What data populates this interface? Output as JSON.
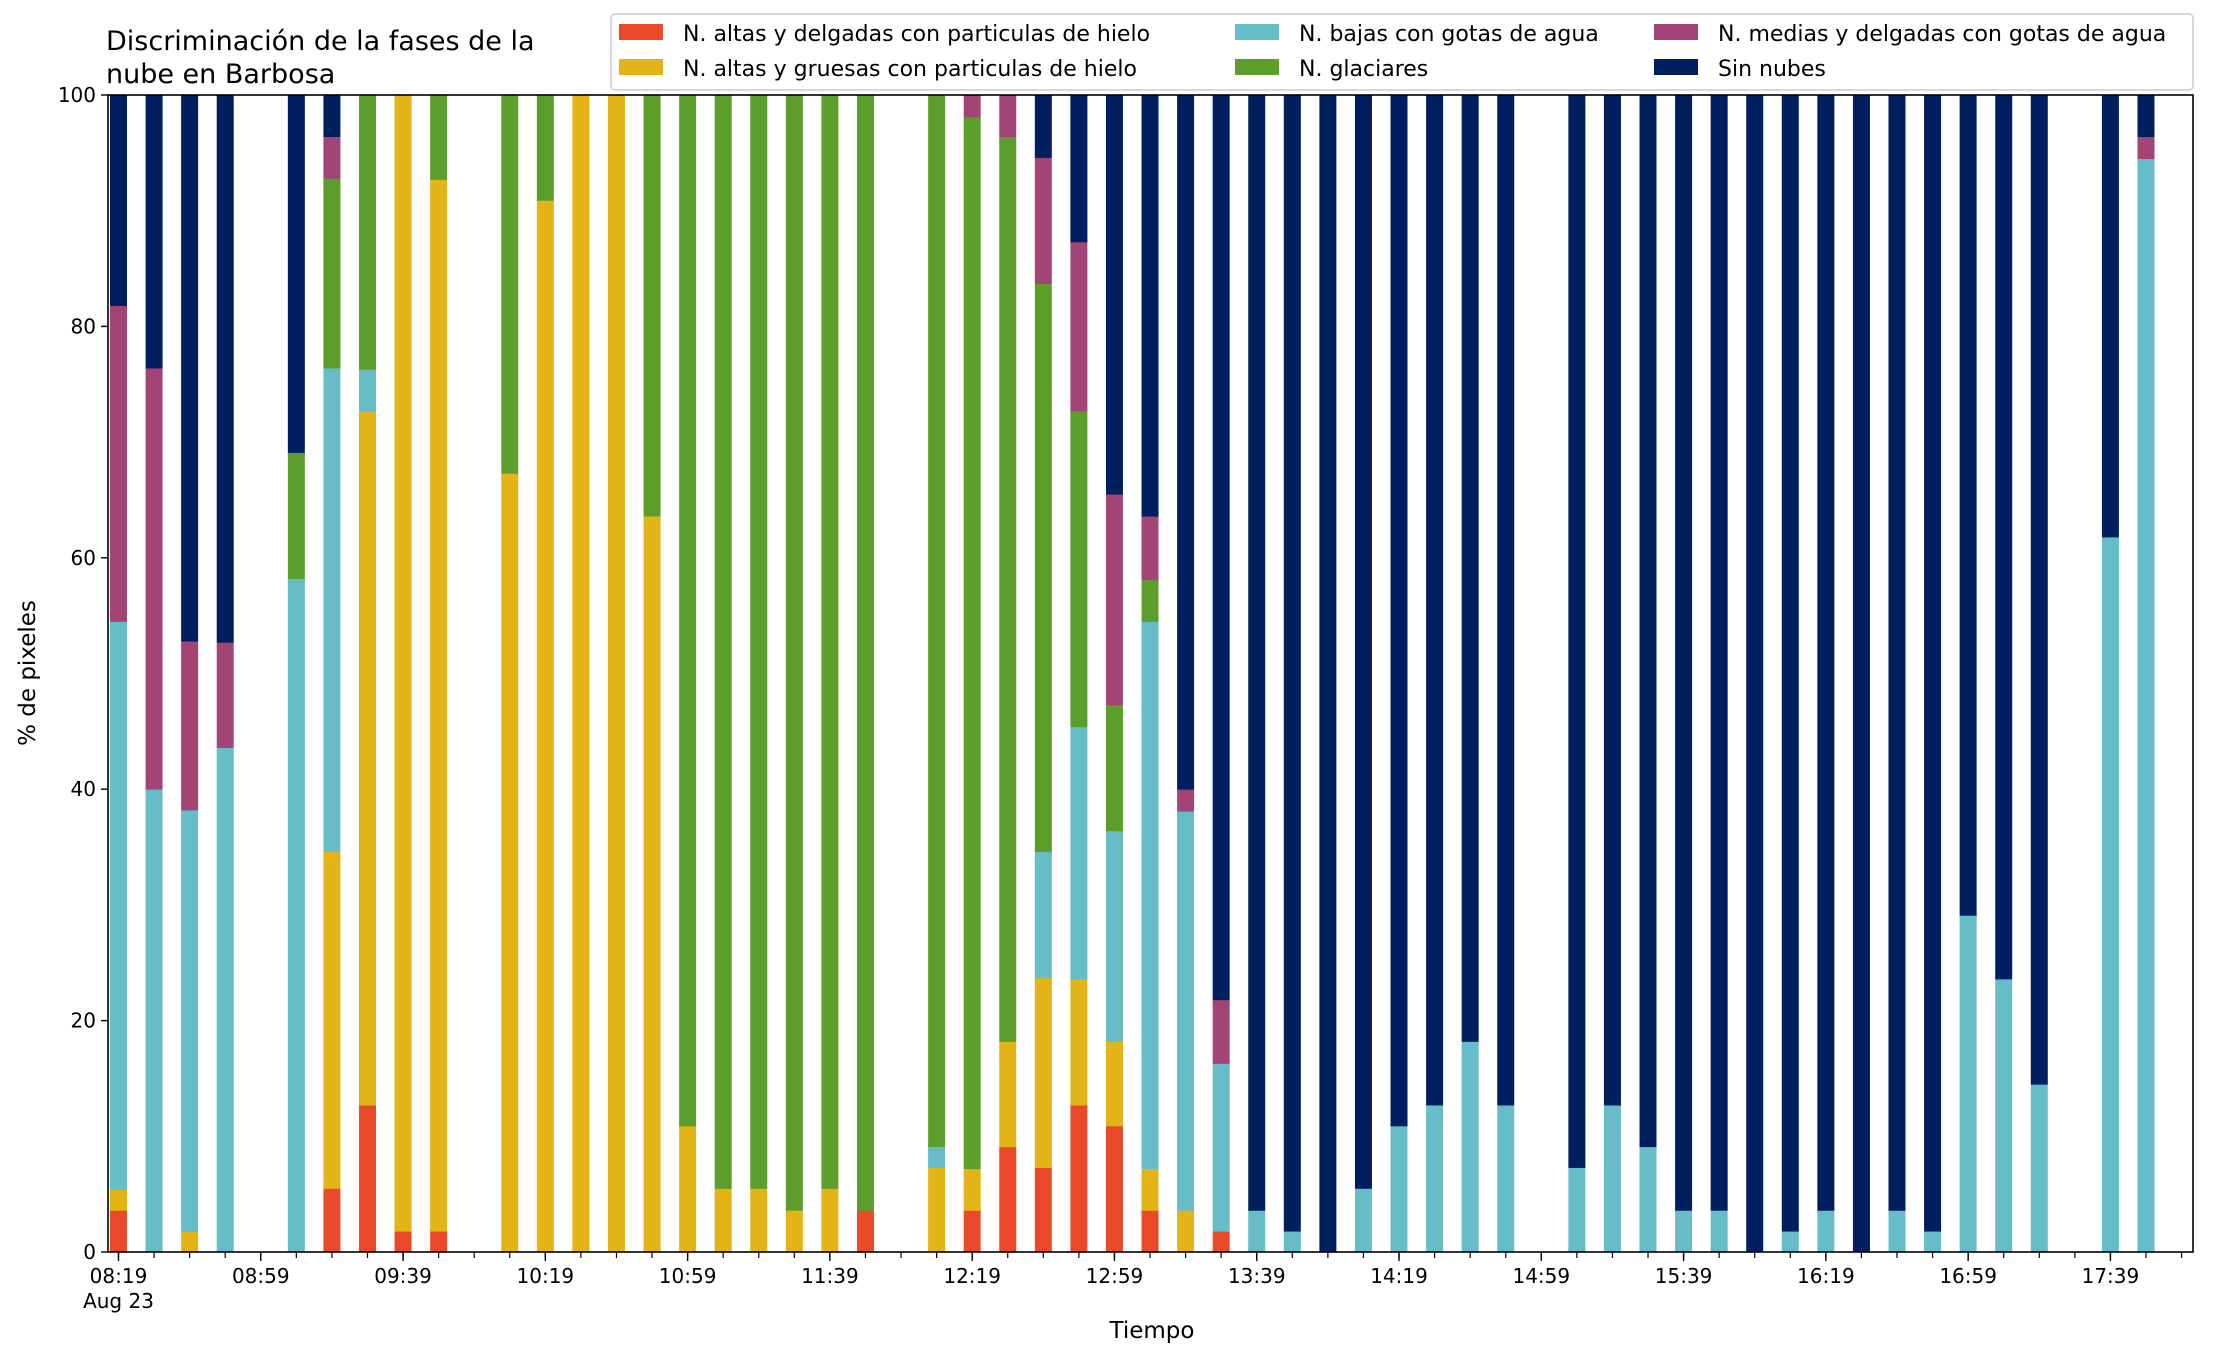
{
  "chart_data": {
    "type": "bar",
    "stacked": true,
    "title_lines": [
      "Discriminación de la fases de la",
      "nube en Barbosa"
    ],
    "xlabel": "Tiempo",
    "ylabel": "% de pixeles",
    "ylim": [
      0,
      100
    ],
    "yticks": [
      0,
      20,
      40,
      60,
      80,
      100
    ],
    "x_start_minutes": 499,
    "slot_minutes": 10,
    "slot_count": 59,
    "xtick_labels": [
      {
        "slot": 0,
        "label": "08:19",
        "sublabel": "Aug 23"
      },
      {
        "slot": 4,
        "label": "08:59"
      },
      {
        "slot": 8,
        "label": "09:39"
      },
      {
        "slot": 12,
        "label": "10:19"
      },
      {
        "slot": 16,
        "label": "10:59"
      },
      {
        "slot": 20,
        "label": "11:39"
      },
      {
        "slot": 24,
        "label": "12:19"
      },
      {
        "slot": 28,
        "label": "12:59"
      },
      {
        "slot": 32,
        "label": "13:39"
      },
      {
        "slot": 36,
        "label": "14:19"
      },
      {
        "slot": 40,
        "label": "14:59"
      },
      {
        "slot": 44,
        "label": "15:39"
      },
      {
        "slot": 48,
        "label": "16:19"
      },
      {
        "slot": 52,
        "label": "16:59"
      },
      {
        "slot": 56,
        "label": "17:39"
      }
    ],
    "legend_position": "top-right",
    "series": [
      {
        "name": "N. altas y delgadas con particulas de hielo",
        "color": "#ea4a2a"
      },
      {
        "name": "N. altas y gruesas con particulas de hielo",
        "color": "#e3b418"
      },
      {
        "name": "N. bajas con gotas de agua",
        "color": "#66bcc7"
      },
      {
        "name": "N. glaciares",
        "color": "#5c9e2c"
      },
      {
        "name": "N. medias y delgadas con gotas de agua",
        "color": "#a34476"
      },
      {
        "name": "Sin nubes",
        "color": "#001f5f"
      }
    ],
    "legend_layout": [
      [
        0,
        2,
        4
      ],
      [
        1,
        3,
        5
      ]
    ],
    "bars": [
      {
        "slot": 0,
        "values": [
          3.6,
          1.8,
          49.1,
          0,
          27.3,
          18.2
        ]
      },
      {
        "slot": 1,
        "values": [
          0,
          0,
          40,
          0,
          36.4,
          23.6
        ]
      },
      {
        "slot": 2,
        "values": [
          0,
          1.8,
          36.4,
          0,
          14.6,
          47.2
        ]
      },
      {
        "slot": 3,
        "values": [
          0,
          0,
          43.6,
          0,
          9.1,
          47.3
        ]
      },
      {
        "slot": 5,
        "values": [
          0,
          0,
          58.2,
          10.9,
          0,
          30.9
        ]
      },
      {
        "slot": 6,
        "values": [
          5.5,
          29.1,
          41.8,
          16.4,
          3.6,
          3.6
        ]
      },
      {
        "slot": 7,
        "values": [
          12.7,
          60,
          3.6,
          23.7,
          0,
          0
        ]
      },
      {
        "slot": 8,
        "values": [
          1.8,
          98.2,
          0,
          0,
          0,
          0
        ]
      },
      {
        "slot": 9,
        "values": [
          1.8,
          90.9,
          0,
          7.3,
          0,
          0
        ]
      },
      {
        "slot": 11,
        "values": [
          0,
          67.3,
          0,
          32.7,
          0,
          0
        ]
      },
      {
        "slot": 12,
        "values": [
          0,
          90.9,
          0,
          9.1,
          0,
          0
        ]
      },
      {
        "slot": 13,
        "values": [
          0,
          100,
          0,
          0,
          0,
          0
        ]
      },
      {
        "slot": 14,
        "values": [
          0,
          100,
          0,
          0,
          0,
          0
        ]
      },
      {
        "slot": 15,
        "values": [
          0,
          63.6,
          0,
          36.4,
          0,
          0
        ]
      },
      {
        "slot": 16,
        "values": [
          0,
          10.9,
          0,
          89.1,
          0,
          0
        ]
      },
      {
        "slot": 17,
        "values": [
          0,
          5.5,
          0,
          94.5,
          0,
          0
        ]
      },
      {
        "slot": 18,
        "values": [
          0,
          5.5,
          0,
          94.5,
          0,
          0
        ]
      },
      {
        "slot": 19,
        "values": [
          0,
          3.6,
          0,
          96.4,
          0,
          0
        ]
      },
      {
        "slot": 20,
        "values": [
          0,
          5.5,
          0,
          94.5,
          0,
          0
        ]
      },
      {
        "slot": 21,
        "values": [
          3.6,
          0,
          0,
          96.4,
          0,
          0
        ]
      },
      {
        "slot": 23,
        "values": [
          0,
          7.3,
          1.8,
          90.9,
          0,
          0
        ]
      },
      {
        "slot": 24,
        "values": [
          3.6,
          3.6,
          0,
          90.9,
          1.9,
          0
        ]
      },
      {
        "slot": 25,
        "values": [
          9.1,
          9.1,
          0,
          78.2,
          3.6,
          0
        ]
      },
      {
        "slot": 26,
        "values": [
          7.3,
          16.4,
          10.9,
          49.1,
          10.9,
          5.4
        ]
      },
      {
        "slot": 27,
        "values": [
          12.7,
          10.9,
          21.8,
          27.3,
          14.6,
          12.7
        ]
      },
      {
        "slot": 28,
        "values": [
          10.9,
          7.3,
          18.2,
          10.9,
          18.2,
          34.5
        ]
      },
      {
        "slot": 29,
        "values": [
          3.6,
          3.6,
          47.3,
          3.6,
          5.5,
          36.4
        ]
      },
      {
        "slot": 30,
        "values": [
          0,
          3.6,
          34.5,
          0,
          1.9,
          60
        ]
      },
      {
        "slot": 31,
        "values": [
          1.8,
          0,
          14.5,
          0,
          5.5,
          78.2
        ]
      },
      {
        "slot": 32,
        "values": [
          0,
          0,
          3.6,
          0,
          0,
          96.4
        ]
      },
      {
        "slot": 33,
        "values": [
          0,
          0,
          1.8,
          0,
          0,
          98.2
        ]
      },
      {
        "slot": 34,
        "values": [
          0,
          0,
          0,
          0,
          0,
          100
        ]
      },
      {
        "slot": 35,
        "values": [
          0,
          0,
          5.5,
          0,
          0,
          94.5
        ]
      },
      {
        "slot": 36,
        "values": [
          0,
          0,
          10.9,
          0,
          0,
          89.1
        ]
      },
      {
        "slot": 37,
        "values": [
          0,
          0,
          12.7,
          0,
          0,
          87.3
        ]
      },
      {
        "slot": 38,
        "values": [
          0,
          0,
          18.2,
          0,
          0,
          81.8
        ]
      },
      {
        "slot": 39,
        "values": [
          0,
          0,
          12.7,
          0,
          0,
          87.3
        ]
      },
      {
        "slot": 41,
        "values": [
          0,
          0,
          7.3,
          0,
          0,
          92.7
        ]
      },
      {
        "slot": 42,
        "values": [
          0,
          0,
          12.7,
          0,
          0,
          87.3
        ]
      },
      {
        "slot": 43,
        "values": [
          0,
          0,
          9.1,
          0,
          0,
          90.9
        ]
      },
      {
        "slot": 44,
        "values": [
          0,
          0,
          3.6,
          0,
          0,
          96.4
        ]
      },
      {
        "slot": 45,
        "values": [
          0,
          0,
          3.6,
          0,
          0,
          96.4
        ]
      },
      {
        "slot": 46,
        "values": [
          0,
          0,
          0,
          0,
          0,
          100
        ]
      },
      {
        "slot": 47,
        "values": [
          0,
          0,
          1.8,
          0,
          0,
          98.2
        ]
      },
      {
        "slot": 48,
        "values": [
          0,
          0,
          3.6,
          0,
          0,
          96.4
        ]
      },
      {
        "slot": 49,
        "values": [
          0,
          0,
          0,
          0,
          0,
          100
        ]
      },
      {
        "slot": 50,
        "values": [
          0,
          0,
          3.6,
          0,
          0,
          96.4
        ]
      },
      {
        "slot": 51,
        "values": [
          0,
          0,
          1.8,
          0,
          0,
          98.2
        ]
      },
      {
        "slot": 52,
        "values": [
          0,
          0,
          29.1,
          0,
          0,
          70.9
        ]
      },
      {
        "slot": 53,
        "values": [
          0,
          0,
          23.6,
          0,
          0,
          76.4
        ]
      },
      {
        "slot": 54,
        "values": [
          0,
          0,
          14.5,
          0,
          0,
          85.5
        ]
      },
      {
        "slot": 56,
        "values": [
          0,
          0,
          61.8,
          0,
          0,
          38.2
        ]
      },
      {
        "slot": 57,
        "values": [
          0,
          0,
          94.5,
          0,
          1.9,
          3.6
        ]
      }
    ]
  }
}
